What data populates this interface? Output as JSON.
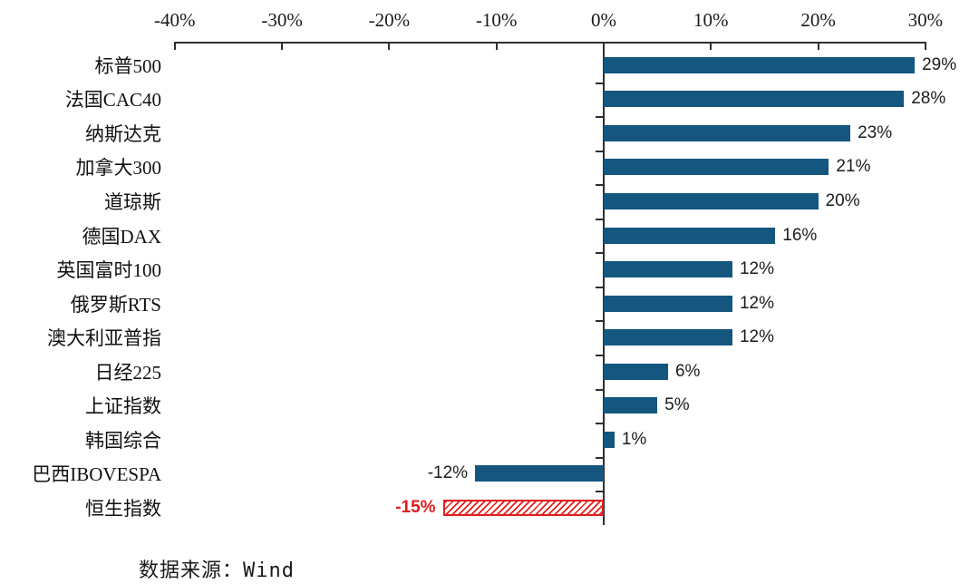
{
  "chart_data": {
    "type": "bar",
    "orientation": "horizontal",
    "title": "",
    "categories": [
      "标普500",
      "法国CAC40",
      "纳斯达克",
      "加拿大300",
      "道琼斯",
      "德国DAX",
      "英国富时100",
      "俄罗斯RTS",
      "澳大利亚普指",
      "日经225",
      "上证指数",
      "韩国综合",
      "巴西IBOVESPA",
      "恒生指数"
    ],
    "values": [
      29,
      28,
      23,
      21,
      20,
      16,
      12,
      12,
      12,
      6,
      5,
      1,
      -12,
      -15
    ],
    "value_labels": [
      "29%",
      "28%",
      "23%",
      "21%",
      "20%",
      "16%",
      "12%",
      "12%",
      "12%",
      "6%",
      "5%",
      "1%",
      "-12%",
      "-15%"
    ],
    "xlim": [
      -40,
      30
    ],
    "x_ticks": [
      -40,
      -30,
      -20,
      -10,
      0,
      10,
      20,
      30
    ],
    "x_tick_labels": [
      "-40%",
      "-30%",
      "-20%",
      "-10%",
      "0%",
      "10%",
      "20%",
      "30%"
    ],
    "axis_position": "top",
    "grid": false,
    "legend": false,
    "bar_color": "#15567f",
    "highlight_category": "恒生指数",
    "highlight_color": "#e21d1d",
    "highlight_pattern": "diagonal-hatch"
  },
  "source": {
    "label": "数据来源：Wind"
  }
}
